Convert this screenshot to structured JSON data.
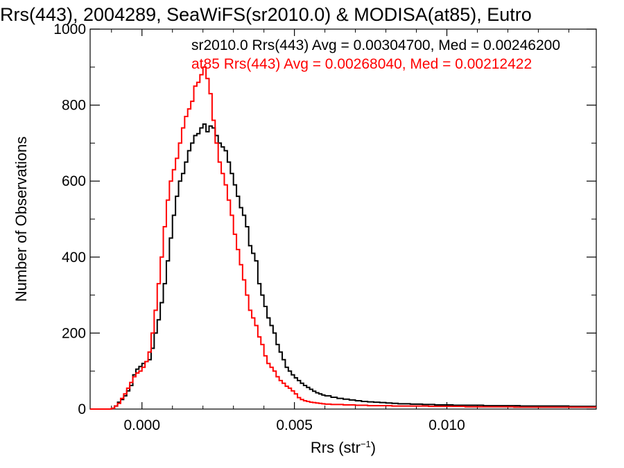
{
  "chart_data": {
    "type": "line",
    "title": "Rrs(443), 2004289, SeaWiFS(sr2010.0) & MODISA(at85), Eutro",
    "xlabel": "Rrs (str",
    "xlabel_sup": "−1",
    "xlabel_close": ")",
    "ylabel": "Number of Observations",
    "xlim": [
      -0.0017,
      0.0149
    ],
    "ylim": [
      0,
      1000
    ],
    "grid": false,
    "legend_position": "top-right",
    "x_ticks": [
      0.0,
      0.005,
      0.01
    ],
    "x_tick_labels": [
      "0.000",
      "0.005",
      "0.010"
    ],
    "y_ticks": [
      0,
      200,
      400,
      600,
      800,
      1000
    ],
    "y_tick_labels": [
      "0",
      "200",
      "400",
      "600",
      "800",
      "1000"
    ],
    "series": [
      {
        "name": "sr2010.0",
        "legend_text": "sr2010.0 Rrs(443) Avg = 0.00304700, Med = 0.00246200",
        "color": "#000000",
        "x": [
          -0.0017,
          -0.0016,
          -0.0015,
          -0.0014,
          -0.0013,
          -0.0012,
          -0.0011,
          -0.001,
          -0.0009,
          -0.0008,
          -0.0007,
          -0.0006,
          -0.0005,
          -0.0004,
          -0.0003,
          -0.0002,
          -0.0001,
          0.0,
          0.0001,
          0.0002,
          0.0003,
          0.0004,
          0.0005,
          0.0006,
          0.0007,
          0.0008,
          0.0009,
          0.001,
          0.0011,
          0.0012,
          0.0013,
          0.0014,
          0.0015,
          0.0016,
          0.0017,
          0.0018,
          0.0019,
          0.002,
          0.0021,
          0.0022,
          0.0023,
          0.0024,
          0.0025,
          0.0026,
          0.0027,
          0.0028,
          0.0029,
          0.003,
          0.0031,
          0.0032,
          0.0033,
          0.0034,
          0.0035,
          0.0036,
          0.0037,
          0.0038,
          0.0039,
          0.004,
          0.0041,
          0.0042,
          0.0043,
          0.0044,
          0.0045,
          0.0046,
          0.0047,
          0.0048,
          0.0049,
          0.005,
          0.0051,
          0.0052,
          0.0053,
          0.0054,
          0.0055,
          0.0056,
          0.0057,
          0.0058,
          0.0059,
          0.006,
          0.0062,
          0.0064,
          0.0066,
          0.0068,
          0.007,
          0.0072,
          0.0074,
          0.0076,
          0.0078,
          0.008,
          0.0082,
          0.0084,
          0.0086,
          0.0088,
          0.009,
          0.0092,
          0.0094,
          0.0096,
          0.0098,
          0.01,
          0.0102,
          0.0104,
          0.0106,
          0.0108,
          0.011,
          0.0112,
          0.0114,
          0.0116,
          0.0118,
          0.012,
          0.0122,
          0.0124,
          0.0126,
          0.0128,
          0.013,
          0.0132,
          0.0134,
          0.0136,
          0.0138,
          0.014,
          0.0142,
          0.0144,
          0.0146,
          0.0148
        ],
        "y": [
          0,
          0,
          0,
          0,
          0,
          0,
          0,
          2,
          8,
          18,
          25,
          35,
          48,
          62,
          90,
          105,
          112,
          120,
          125,
          130,
          160,
          200,
          235,
          280,
          330,
          390,
          450,
          510,
          560,
          600,
          620,
          650,
          680,
          700,
          720,
          725,
          740,
          750,
          730,
          745,
          740,
          720,
          700,
          690,
          680,
          650,
          620,
          590,
          560,
          530,
          510,
          480,
          430,
          410,
          390,
          330,
          300,
          270,
          240,
          220,
          200,
          170,
          150,
          130,
          110,
          100,
          90,
          82,
          75,
          68,
          62,
          57,
          52,
          47,
          43,
          40,
          37,
          35,
          31,
          28,
          26,
          24,
          22,
          20,
          19,
          18,
          17,
          16,
          15,
          14,
          14,
          13,
          13,
          12,
          12,
          11,
          11,
          11,
          10,
          10,
          10,
          10,
          10,
          9,
          9,
          9,
          9,
          9,
          9,
          8,
          8,
          8,
          8,
          8,
          8,
          8,
          8,
          7,
          7,
          7,
          7,
          7
        ]
      },
      {
        "name": "at85",
        "legend_text": "at85 Rrs(443) Avg = 0.00268040, Med = 0.00212422",
        "color": "#ff0000",
        "x": [
          -0.0017,
          -0.0016,
          -0.0015,
          -0.0014,
          -0.0013,
          -0.0012,
          -0.0011,
          -0.001,
          -0.0009,
          -0.0008,
          -0.0007,
          -0.0006,
          -0.0005,
          -0.0004,
          -0.0003,
          -0.0002,
          -0.0001,
          0.0,
          0.0001,
          0.0002,
          0.0003,
          0.0004,
          0.0005,
          0.0006,
          0.0007,
          0.0008,
          0.0009,
          0.001,
          0.0011,
          0.0012,
          0.0013,
          0.0014,
          0.0015,
          0.0016,
          0.0017,
          0.0018,
          0.0019,
          0.002,
          0.0021,
          0.0022,
          0.0023,
          0.0024,
          0.0025,
          0.0026,
          0.0027,
          0.0028,
          0.0029,
          0.003,
          0.0031,
          0.0032,
          0.0033,
          0.0034,
          0.0035,
          0.0036,
          0.0037,
          0.0038,
          0.0039,
          0.004,
          0.0041,
          0.0042,
          0.0043,
          0.0044,
          0.0045,
          0.0046,
          0.0047,
          0.0048,
          0.0049,
          0.005,
          0.0051,
          0.0052,
          0.0053,
          0.0054,
          0.0055,
          0.0056,
          0.0057,
          0.0058,
          0.0059,
          0.006,
          0.0062,
          0.0064,
          0.0066,
          0.0068,
          0.007,
          0.0072,
          0.0074,
          0.0076,
          0.0078,
          0.008,
          0.0082,
          0.0084,
          0.0086,
          0.0088,
          0.009,
          0.0092,
          0.0094,
          0.0096,
          0.0098,
          0.01,
          0.0102,
          0.0104,
          0.0106,
          0.0108,
          0.011,
          0.0112,
          0.0114,
          0.0116,
          0.0118,
          0.012,
          0.0122,
          0.0124,
          0.0126,
          0.0128,
          0.013,
          0.0132,
          0.0134,
          0.0136,
          0.0138,
          0.014,
          0.0142,
          0.0144,
          0.0146,
          0.0148
        ],
        "y": [
          0,
          0,
          0,
          0,
          0,
          0,
          0,
          2,
          8,
          15,
          28,
          40,
          55,
          70,
          85,
          95,
          100,
          110,
          125,
          150,
          200,
          260,
          330,
          400,
          480,
          550,
          600,
          630,
          660,
          700,
          740,
          770,
          790,
          810,
          850,
          860,
          880,
          900,
          870,
          830,
          760,
          700,
          650,
          620,
          590,
          550,
          510,
          460,
          420,
          380,
          340,
          300,
          260,
          240,
          220,
          190,
          170,
          140,
          120,
          110,
          100,
          85,
          75,
          68,
          60,
          55,
          48,
          40,
          30,
          25,
          22,
          20,
          18,
          17,
          16,
          15,
          14,
          13,
          12,
          12,
          11,
          11,
          10,
          10,
          9,
          9,
          9,
          9,
          8,
          8,
          8,
          8,
          8,
          8,
          7,
          7,
          7,
          7,
          7,
          7,
          6,
          6,
          6,
          6,
          6,
          6,
          6,
          6,
          5,
          5,
          5,
          5,
          5,
          5,
          5,
          5,
          5,
          5,
          5,
          5,
          5,
          5
        ]
      }
    ]
  }
}
